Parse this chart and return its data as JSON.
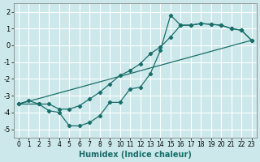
{
  "xlabel": "Humidex (Indice chaleur)",
  "bg_color": "#cce8ea",
  "grid_color": "#ffffff",
  "line_color": "#1a6e6a",
  "xlim": [
    -0.5,
    23.5
  ],
  "ylim": [
    -5.5,
    2.5
  ],
  "xticks": [
    0,
    1,
    2,
    3,
    4,
    5,
    6,
    7,
    8,
    9,
    10,
    11,
    12,
    13,
    14,
    15,
    16,
    17,
    18,
    19,
    20,
    21,
    22,
    23
  ],
  "yticks": [
    -5,
    -4,
    -3,
    -2,
    -1,
    0,
    1,
    2
  ],
  "line1_x": [
    0,
    1,
    2,
    3,
    4,
    5,
    6,
    7,
    8,
    9,
    10,
    11,
    12,
    13,
    14,
    15,
    16,
    17,
    18,
    19,
    20,
    21,
    22,
    23
  ],
  "line1_y": [
    -3.5,
    -3.3,
    -3.5,
    -3.9,
    -4.0,
    -4.8,
    -4.8,
    -4.6,
    -4.2,
    -3.4,
    -3.4,
    -2.6,
    -2.5,
    -1.7,
    -0.3,
    1.8,
    1.2,
    1.2,
    1.3,
    1.25,
    1.2,
    1.0,
    0.9,
    0.3
  ],
  "line2_x": [
    0,
    2,
    3,
    4,
    5,
    6,
    7,
    8,
    9,
    10,
    11,
    12,
    13,
    14,
    15,
    16,
    17,
    18,
    19,
    20,
    21,
    22,
    23
  ],
  "line2_y": [
    -3.5,
    -3.5,
    -3.5,
    -3.8,
    -3.8,
    -3.6,
    -3.2,
    -2.8,
    -2.3,
    -1.8,
    -1.5,
    -1.1,
    -0.5,
    -0.1,
    0.5,
    1.2,
    1.2,
    1.3,
    1.25,
    1.2,
    1.0,
    0.9,
    0.3
  ],
  "line3_x": [
    0,
    23
  ],
  "line3_y": [
    -3.5,
    0.3
  ]
}
